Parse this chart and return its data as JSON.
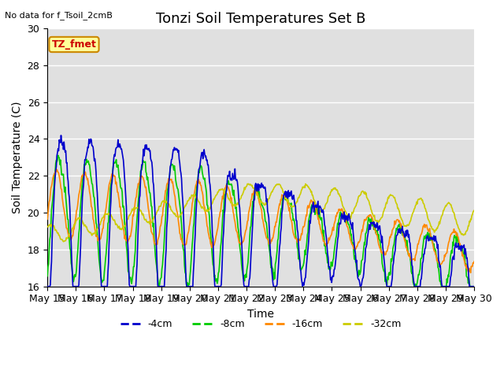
{
  "title": "Tonzi Soil Temperatures Set B",
  "no_data_label": "No data for f_Tsoil_2cmB",
  "tz_fmet_label": "TZ_fmet",
  "ylabel": "Soil Temperature (C)",
  "xlabel": "Time",
  "ylim": [
    16,
    30
  ],
  "yticks": [
    16,
    18,
    20,
    22,
    24,
    26,
    28,
    30
  ],
  "xtick_labels": [
    "May 15",
    "May 16",
    "May 17",
    "May 18",
    "May 19",
    "May 20",
    "May 21",
    "May 22",
    "May 23",
    "May 24",
    "May 25",
    "May 26",
    "May 27",
    "May 28",
    "May 29",
    "May 30"
  ],
  "line_colors": [
    "#0000cc",
    "#00cc00",
    "#ff8800",
    "#cccc00"
  ],
  "line_labels": [
    "-4cm",
    "-8cm",
    "-16cm",
    "-32cm"
  ],
  "background_color": "#e0e0e0",
  "title_fontsize": 13,
  "axis_fontsize": 10,
  "tick_fontsize": 9
}
